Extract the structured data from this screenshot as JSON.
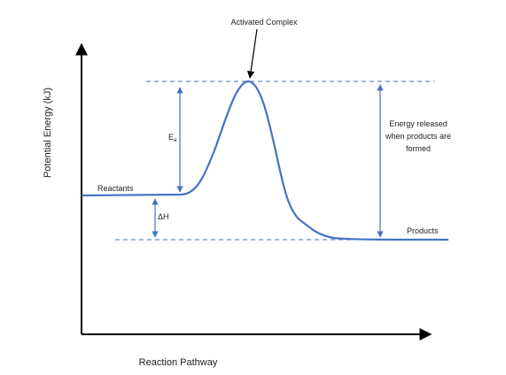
{
  "labels": {
    "activated_complex": "Activated Complex",
    "activation_energy_main": "E",
    "activation_energy_sub": "a",
    "reactants": "Reactants",
    "delta_h": "ΔH",
    "products": "Products",
    "energy_released": [
      "Energy released",
      "when products are",
      "formed"
    ],
    "y_axis": "Potential Energy (kJ)",
    "x_axis": "Reaction Pathway"
  },
  "colors": {
    "curve": "#4472c4",
    "arrows": "#4472c4",
    "dashed": "#4472c4",
    "axes": "#000000",
    "text": "#222222"
  }
}
